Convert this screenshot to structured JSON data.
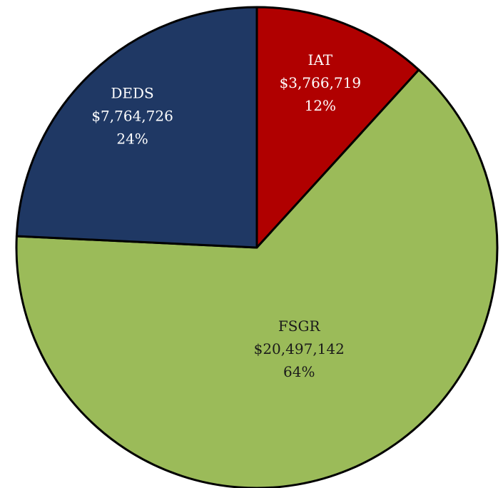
{
  "chart_data": {
    "type": "pie",
    "categories": [
      "IAT",
      "FSGR",
      "DEDS"
    ],
    "values": [
      3766719,
      20497142,
      7764726
    ],
    "value_labels": [
      "$3,766,719",
      "$20,497,142",
      "$7,764,726"
    ],
    "percent_labels": [
      "12%",
      "64%",
      "24%"
    ],
    "colors": [
      "#b00000",
      "#9bbb59",
      "#1f3864"
    ],
    "start_angle": 0,
    "direction": "clockwise"
  }
}
